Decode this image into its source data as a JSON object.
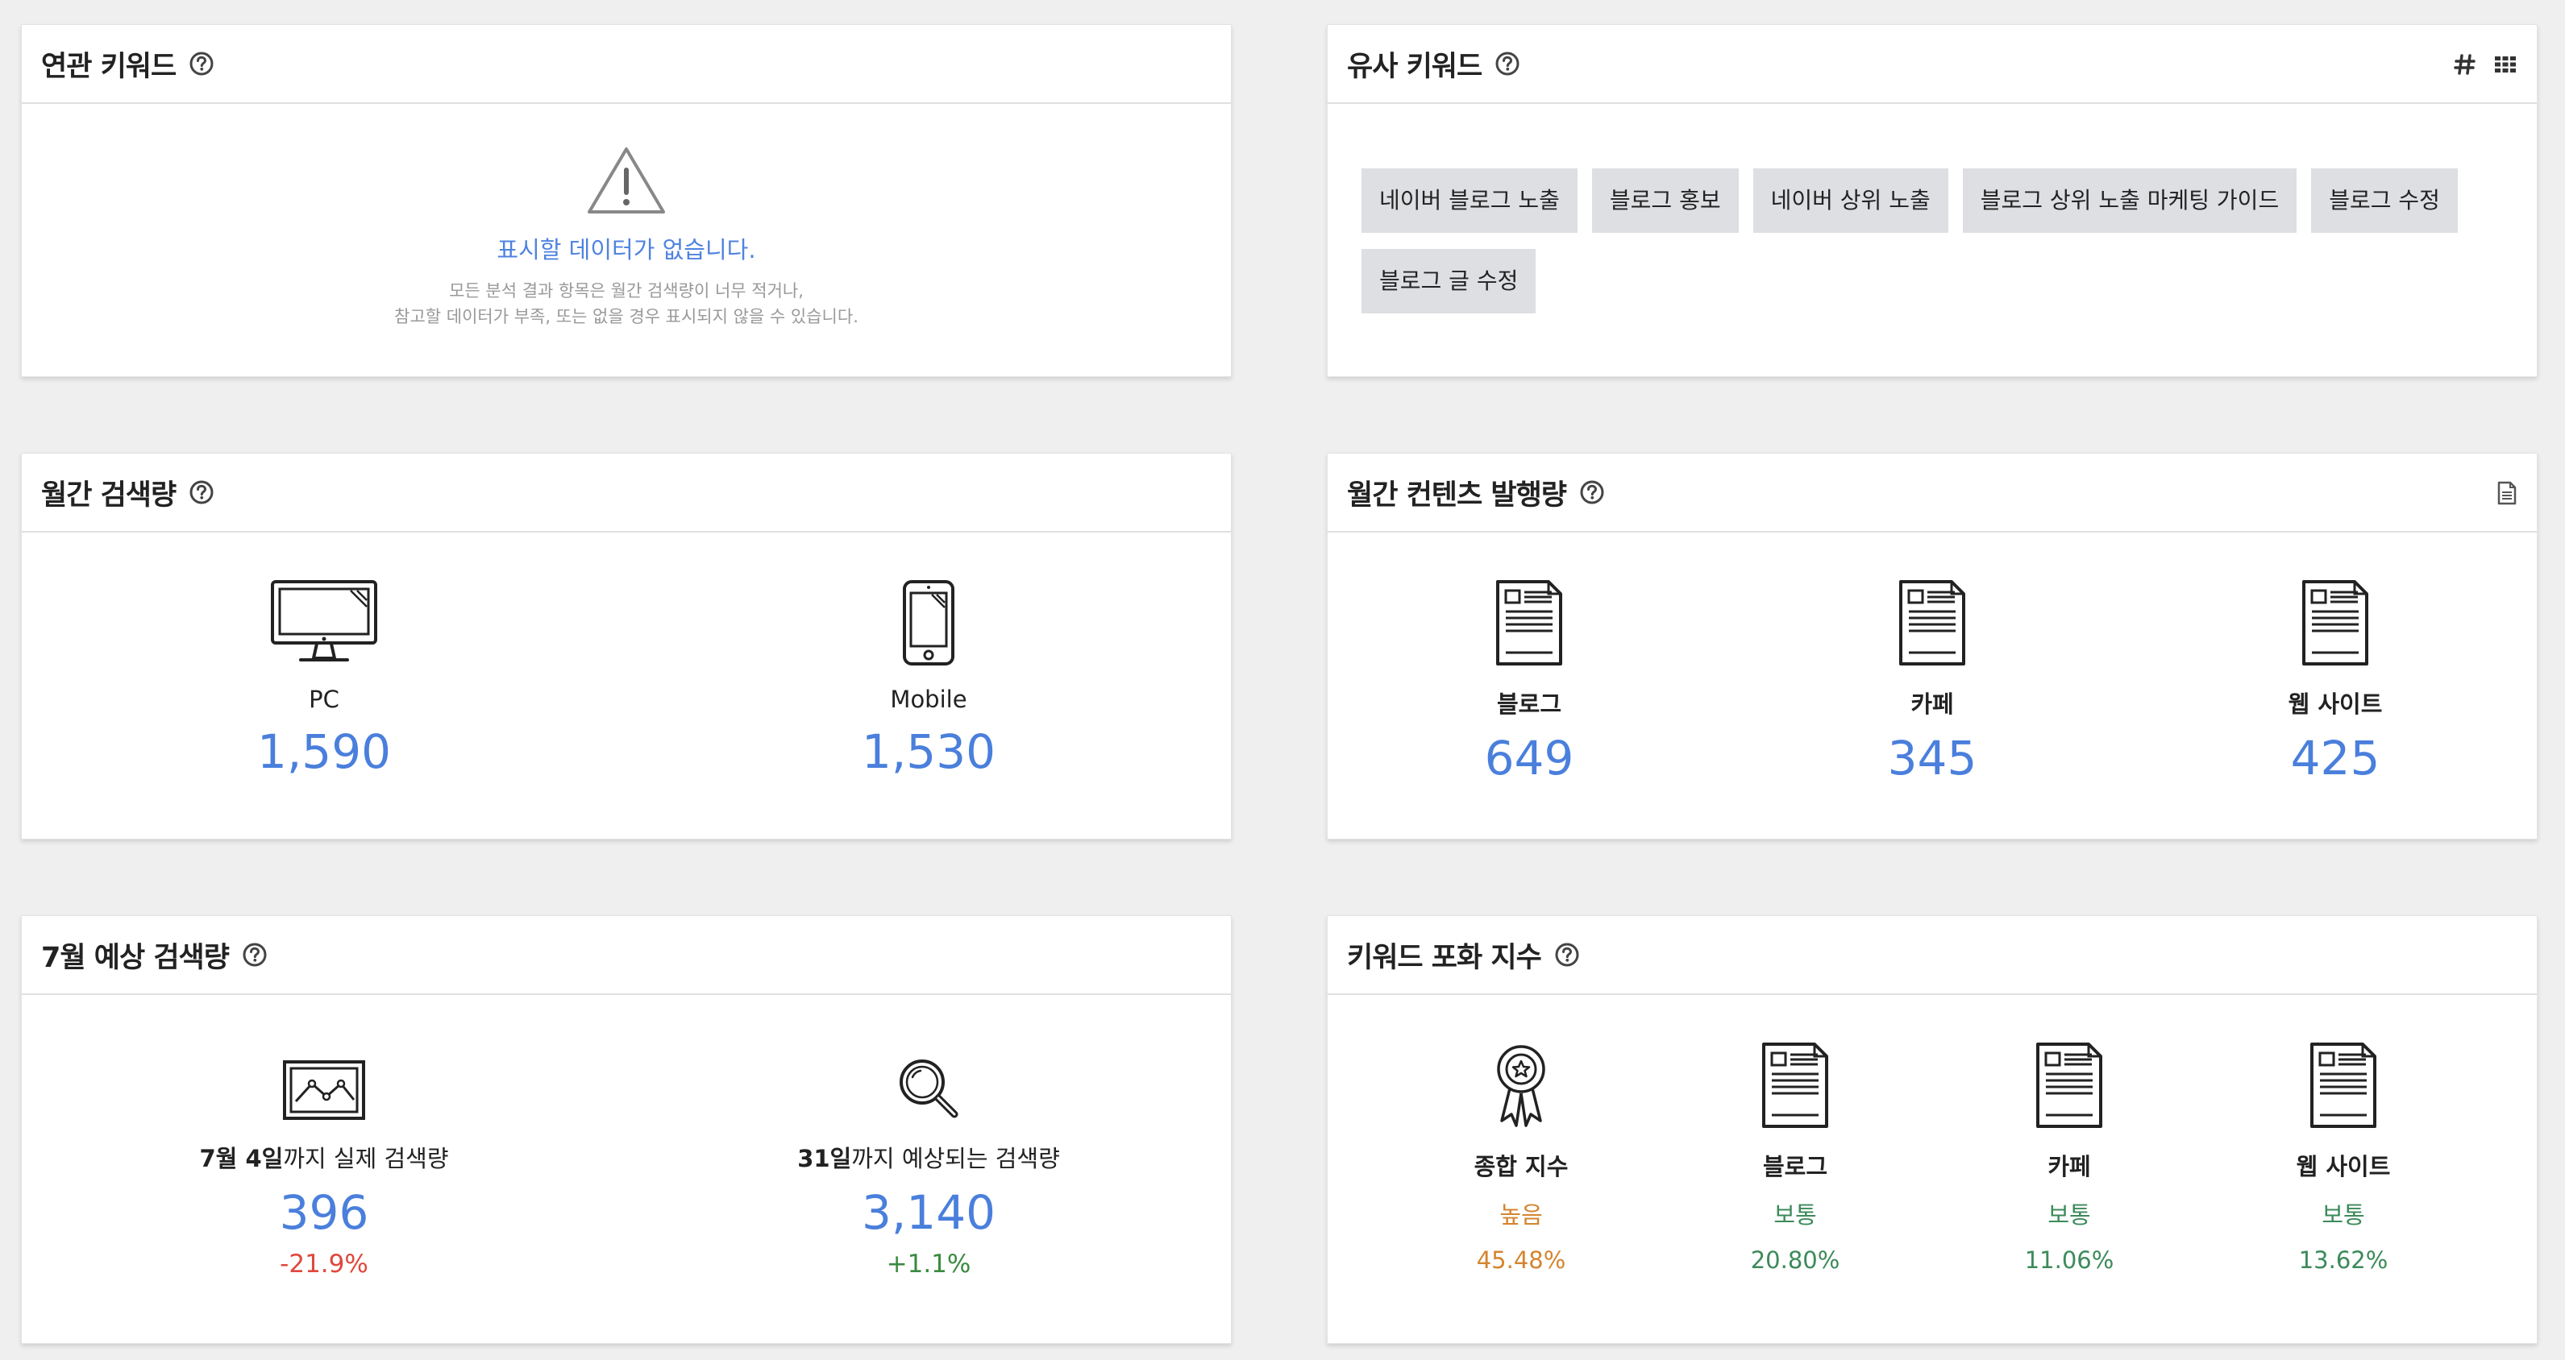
{
  "related": {
    "title": "연관 키워드",
    "empty_title": "표시할 데이터가 없습니다.",
    "empty_desc_line1": "모든 분석 결과 항목은 월간 검색량이 너무 적거나,",
    "empty_desc_line2": "참고할 데이터가 부족, 또는 없을 경우 표시되지 않을 수 있습니다."
  },
  "similar": {
    "title": "유사 키워드",
    "tags": [
      "네이버 블로그 노출",
      "블로그 홍보",
      "네이버 상위 노출",
      "블로그 상위 노출 마케팅 가이드",
      "블로그 수정",
      "블로그 글 수정"
    ]
  },
  "monthly_search": {
    "title": "월간 검색량",
    "items": [
      {
        "label": "PC",
        "value": "1,590"
      },
      {
        "label": "Mobile",
        "value": "1,530"
      }
    ]
  },
  "monthly_content": {
    "title": "월간 컨텐츠 발행량",
    "items": [
      {
        "label": "블로그",
        "value": "649"
      },
      {
        "label": "카페",
        "value": "345"
      },
      {
        "label": "웹 사이트",
        "value": "425"
      }
    ]
  },
  "forecast": {
    "title": "7월 예상 검색량",
    "items": [
      {
        "label_bold": "7월 4일",
        "label_rest": "까지 실제 검색량",
        "value": "396",
        "change": "-21.9%"
      },
      {
        "label_bold": "31일",
        "label_rest": "까지 예상되는 검색량",
        "value": "3,140",
        "change": "+1.1%"
      }
    ]
  },
  "saturation": {
    "title": "키워드 포화 지수",
    "items": [
      {
        "label": "종합 지수",
        "level": "높음",
        "percent": "45.48%"
      },
      {
        "label": "블로그",
        "level": "보통",
        "percent": "20.80%"
      },
      {
        "label": "카페",
        "level": "보통",
        "percent": "11.06%"
      },
      {
        "label": "웹 사이트",
        "level": "보통",
        "percent": "13.62%"
      }
    ]
  },
  "colors": {
    "value_blue": "#4a7fdc",
    "negative_red": "#e0473c",
    "positive_green": "#3a8a3f",
    "high_orange": "#d5842f",
    "normal_green": "#3c8a5a",
    "tag_bg": "#dedfe3"
  },
  "icons": [
    "help-icon",
    "hash-icon",
    "grid-icon",
    "document-icon",
    "warning-icon",
    "monitor-icon",
    "phone-icon",
    "article-icon",
    "chart-image-icon",
    "magnifier-icon",
    "award-ribbon-icon"
  ]
}
